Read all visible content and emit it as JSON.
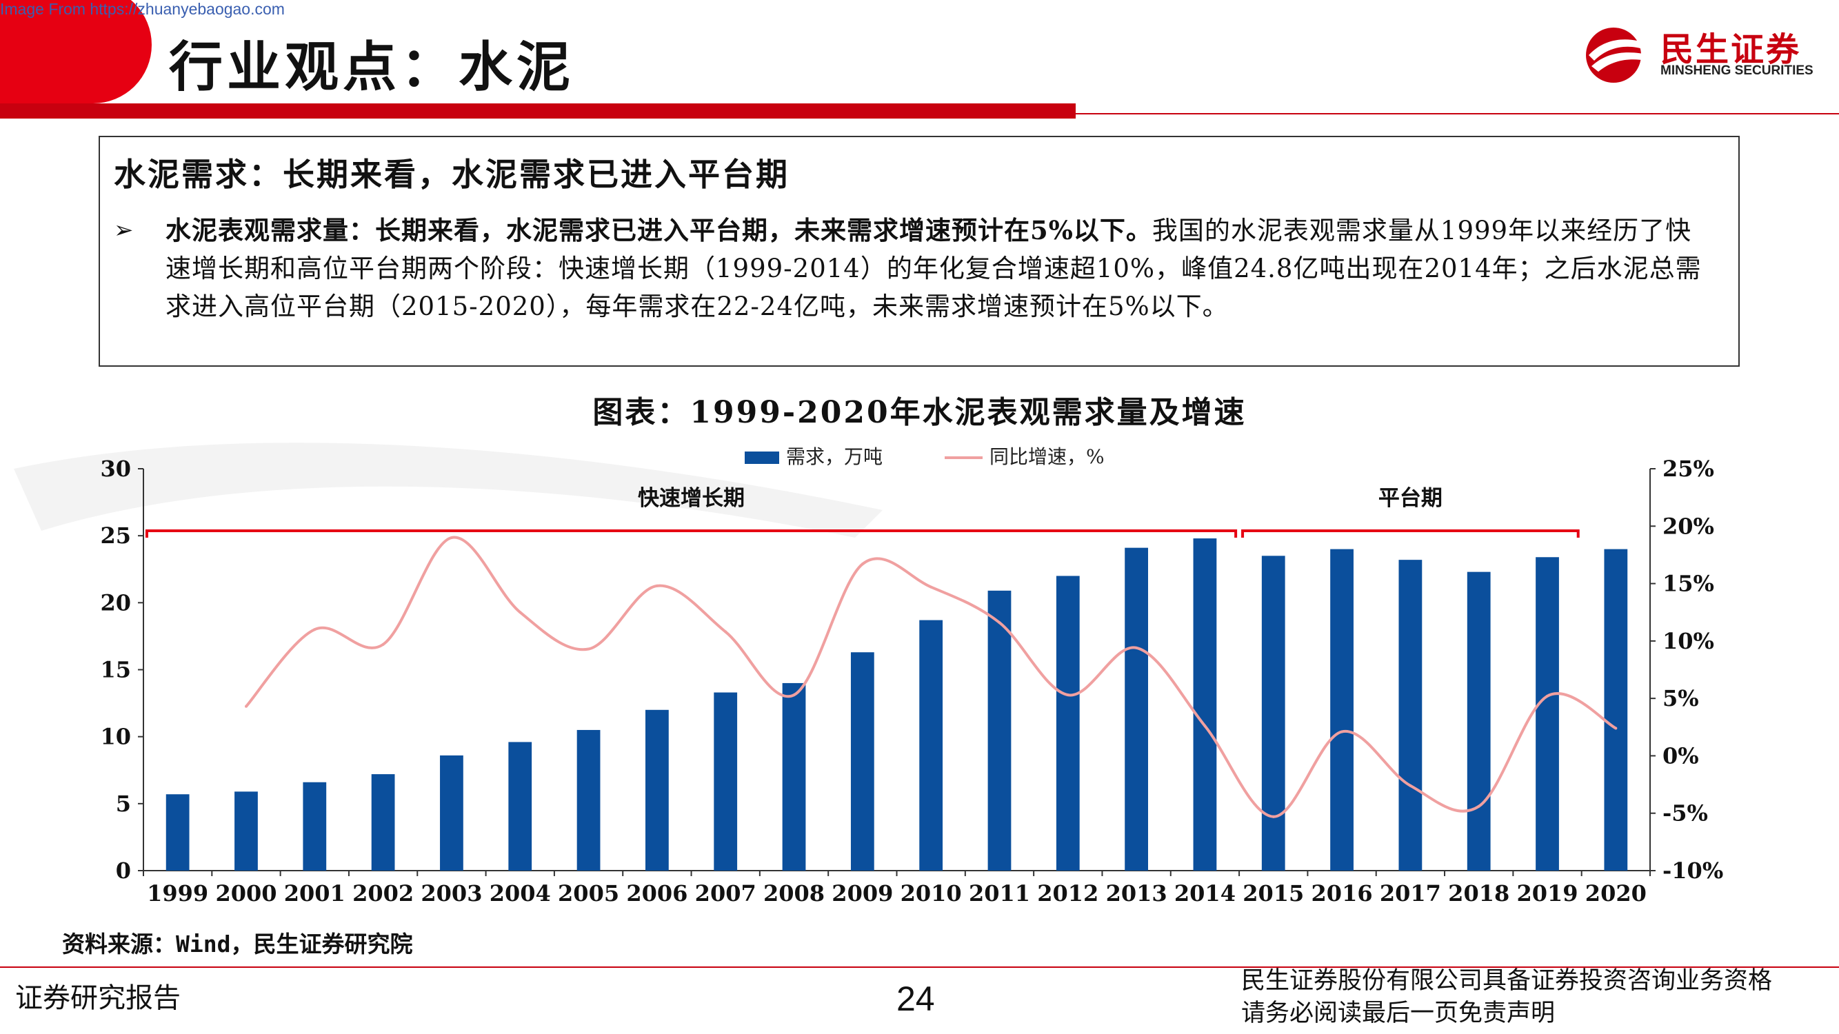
{
  "watermark": "Image From https://zhuanyebaogao.com",
  "header": {
    "title": "行业观点：水泥",
    "logo_cn": "民生证券",
    "logo_en": "MINSHENG SECURITIES",
    "accent": "#c8000f"
  },
  "summary": {
    "title": "水泥需求：长期来看，水泥需求已进入平台期",
    "bullet": "➢",
    "bold_lead": "水泥表观需求量：长期来看，水泥需求已进入平台期，未来需求增速预计在5%以下。",
    "body": "我国的水泥表观需求量从1999年以来经历了快速增长期和高位平台期两个阶段：快速增长期（1999-2014）的年化复合增速超10%，峰值24.8亿吨出现在2014年；之后水泥总需求进入高位平台期（2015-2020），每年需求在22-24亿吨，未来需求增速预计在5%以下。"
  },
  "chart_data": {
    "type": "bar",
    "title": "图表：1999-2020年水泥表观需求量及增速",
    "categories": [
      "1999",
      "2000",
      "2001",
      "2002",
      "2003",
      "2004",
      "2005",
      "2006",
      "2007",
      "2008",
      "2009",
      "2010",
      "2011",
      "2012",
      "2013",
      "2014",
      "2015",
      "2016",
      "2017",
      "2018",
      "2019",
      "2020"
    ],
    "series": [
      {
        "name": "需求，万吨",
        "type": "bar",
        "axis": "left",
        "color": "#0b4f9c",
        "values": [
          5.7,
          5.9,
          6.6,
          7.2,
          8.6,
          9.6,
          10.5,
          12.0,
          13.3,
          14.0,
          16.3,
          18.7,
          20.9,
          22.0,
          24.1,
          24.8,
          23.5,
          24.0,
          23.2,
          22.3,
          23.4,
          24.0
        ]
      },
      {
        "name": "同比增速，%",
        "type": "line",
        "axis": "right",
        "color": "#f0a0a0",
        "values": [
          null,
          4.3,
          11.0,
          9.7,
          19.0,
          12.5,
          9.3,
          14.8,
          10.8,
          5.3,
          16.7,
          14.7,
          11.6,
          5.3,
          9.4,
          2.6,
          -5.3,
          2.1,
          -2.6,
          -4.4,
          5.2,
          2.4
        ]
      }
    ],
    "y_left": {
      "ylim": [
        0,
        30
      ],
      "ticks": [
        "0",
        "5",
        "10",
        "15",
        "20",
        "25",
        "30"
      ]
    },
    "y_right": {
      "ylim": [
        -10,
        25
      ],
      "ticks": [
        "-10%",
        "-5%",
        "0%",
        "5%",
        "10%",
        "15%",
        "20%",
        "25%"
      ]
    },
    "legend_position": "top",
    "grid": false,
    "annotations": [
      {
        "label": "快速增长期",
        "from": "1999",
        "to": "2014"
      },
      {
        "label": "平台期",
        "from": "2015",
        "to": "2019"
      }
    ]
  },
  "source": "资料来源：Wind，民生证券研究院",
  "footer": {
    "left": "证券研究报告",
    "page": "24",
    "right_line1": "民生证券股份有限公司具备证券投资咨询业务资格",
    "right_line2": "请务必阅读最后一页免责声明"
  }
}
